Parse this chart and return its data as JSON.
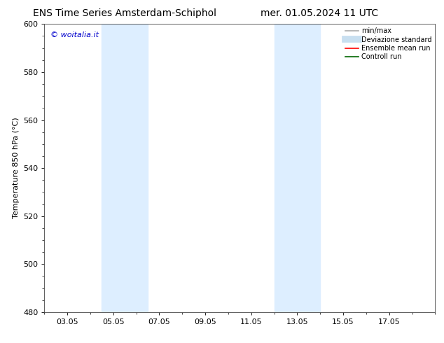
{
  "title_left": "ENS Time Series Amsterdam-Schiphol",
  "title_right": "mer. 01.05.2024 11 UTC",
  "ylabel": "Temperature 850 hPa (°C)",
  "ylim": [
    480,
    600
  ],
  "yticks": [
    480,
    500,
    520,
    540,
    560,
    580,
    600
  ],
  "xlim": [
    1.0,
    18.0
  ],
  "xtick_labels": [
    "03.05",
    "05.05",
    "07.05",
    "09.05",
    "11.05",
    "13.05",
    "15.05",
    "17.05"
  ],
  "xtick_positions": [
    2,
    4,
    6,
    8,
    10,
    12,
    14,
    16
  ],
  "shaded_regions": [
    {
      "x_start": 3.5,
      "x_end": 5.5,
      "color": "#ddeeff"
    },
    {
      "x_start": 11.0,
      "x_end": 13.0,
      "color": "#ddeeff"
    }
  ],
  "watermark_text": "© woitalia.it",
  "watermark_color": "#0000cc",
  "background_color": "#ffffff",
  "legend_items": [
    {
      "label": "min/max",
      "color": "#aaaaaa",
      "lw": 1.2
    },
    {
      "label": "Deviazione standard",
      "color": "#c8dff0",
      "lw": 7
    },
    {
      "label": "Ensemble mean run",
      "color": "#ff0000",
      "lw": 1.2
    },
    {
      "label": "Controll run",
      "color": "#006600",
      "lw": 1.2
    }
  ],
  "title_fontsize": 10,
  "axis_label_fontsize": 8,
  "tick_fontsize": 8,
  "legend_fontsize": 7,
  "watermark_fontsize": 8
}
